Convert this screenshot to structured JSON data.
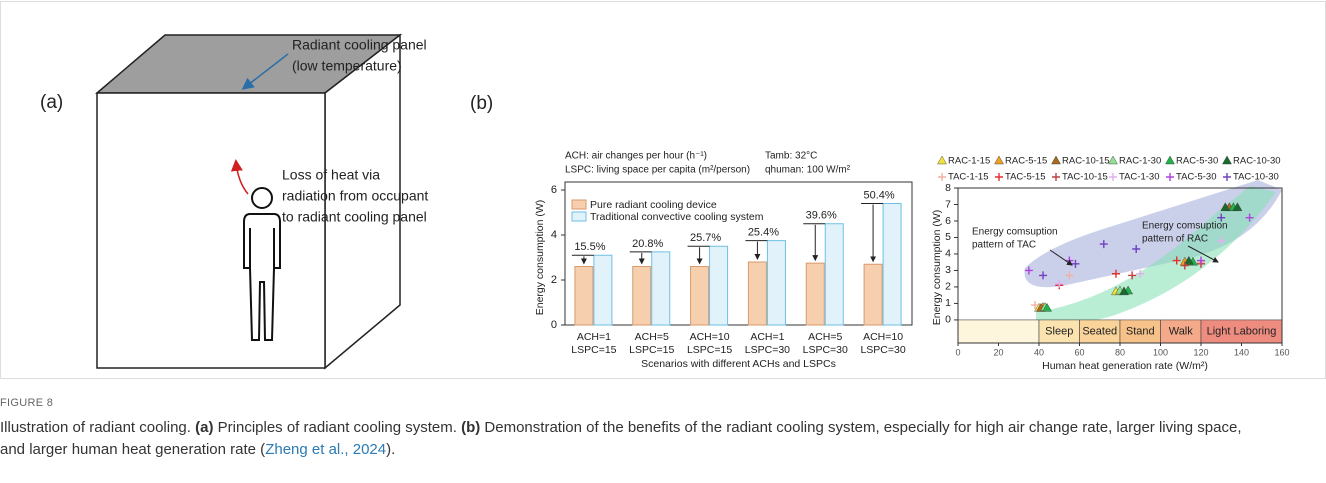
{
  "panel_a": {
    "label": "(a)",
    "panel_note": [
      "Radiant cooling panel",
      "(low temperature)"
    ],
    "heat_note": [
      "Loss of heat via",
      "radiation from occupant",
      "to radiant cooling panel"
    ]
  },
  "panel_b": {
    "label": "(b)"
  },
  "figure": {
    "label": "FIGURE 8",
    "caption": {
      "intro": "Illustration of radiant cooling.",
      "a_label": "(a)",
      "a_text": "Principles of radiant cooling system.",
      "b_label": "(b)",
      "b_text": "Demonstration of the benefits of the radiant cooling system, especially for high air change rate, larger living space, and larger human heat generation rate (",
      "citation": "Zheng et al., 2024",
      "end": ")."
    }
  },
  "chart_data": [
    {
      "type": "bar",
      "notes": [
        "ACH: air changes per hour (h⁻¹)",
        "LSPC: living space per capita (m²/person)"
      ],
      "conditions": [
        "Tamb: 32°C",
        "qhuman: 100 W/m²"
      ],
      "categories": [
        [
          "ACH=1",
          "LSPC=15"
        ],
        [
          "ACH=5",
          "LSPC=15"
        ],
        [
          "ACH=10",
          "LSPC=15"
        ],
        [
          "ACH=1",
          "LSPC=30"
        ],
        [
          "ACH=5",
          "LSPC=30"
        ],
        [
          "ACH=10",
          "LSPC=30"
        ]
      ],
      "series": [
        {
          "name": "Pure radiant cooling device",
          "color": "#f6cfae",
          "edge": "#d99a6c",
          "values": [
            2.6,
            2.6,
            2.6,
            2.8,
            2.75,
            2.7
          ]
        },
        {
          "name": "Traditional convective cooling system",
          "color": "#e2f2fb",
          "edge": "#6cc0e6",
          "values": [
            3.1,
            3.25,
            3.5,
            3.75,
            4.5,
            5.4
          ]
        }
      ],
      "difference_labels": [
        "15.5%",
        "20.8%",
        "25.7%",
        "25.4%",
        "39.6%",
        "50.4%"
      ],
      "ylim": [
        0,
        6
      ],
      "yticks": [
        0,
        2,
        4,
        6
      ],
      "y_label": "Energy consumption (W)",
      "x_label": "Scenarios with different ACHs and LSPCs"
    },
    {
      "type": "scatter",
      "xlim": [
        0,
        160
      ],
      "xticks": [
        0,
        20,
        40,
        60,
        80,
        100,
        120,
        140,
        160
      ],
      "ylim": [
        -1.4,
        8
      ],
      "yticks": [
        0,
        1,
        2,
        3,
        4,
        5,
        6,
        7,
        8
      ],
      "y_label": "Energy consumption (W)",
      "x_label": "Human heat generation rate (W/m²)",
      "annotations": [
        [
          "Energy comsuption",
          "pattern of RAC"
        ],
        [
          "Energy comsuption",
          "pattern of TAC"
        ]
      ],
      "bands": [
        {
          "from": 0,
          "to": 40,
          "color": "#fdf5dc"
        },
        {
          "label": "Sleep",
          "from": 40,
          "to": 60,
          "color": "#fbe3b0"
        },
        {
          "label": "Seated",
          "from": 60,
          "to": 80,
          "color": "#f9d39a"
        },
        {
          "label": "Stand",
          "from": 80,
          "to": 100,
          "color": "#f6c28a"
        },
        {
          "label": "Walk",
          "from": 100,
          "to": 120,
          "color": "#f3a98a"
        },
        {
          "label": "Light Laboring",
          "from": 120,
          "to": 160,
          "color": "#ee8c80"
        }
      ],
      "series": [
        {
          "name": "RAC-1-15",
          "marker": "triangle",
          "color": "#f2e23a",
          "x": [
            40,
            78
          ],
          "values": [
            0.7,
            1.7
          ]
        },
        {
          "name": "RAC-5-15",
          "marker": "triangle",
          "color": "#f0a020",
          "x": [
            42,
            112
          ],
          "values": [
            0.75,
            3.5
          ]
        },
        {
          "name": "RAC-10-15",
          "marker": "triangle",
          "color": "#a86a20",
          "x": [
            41,
            134
          ],
          "values": [
            0.7,
            6.8
          ]
        },
        {
          "name": "RAC-1-30",
          "marker": "triangle",
          "color": "#8fe08f",
          "x": [
            43,
            80
          ],
          "values": [
            0.75,
            1.75
          ]
        },
        {
          "name": "RAC-5-30",
          "marker": "triangle",
          "color": "#22b14c",
          "x": [
            44,
            84,
            116,
            136
          ],
          "values": [
            0.7,
            1.75,
            3.5,
            6.8
          ]
        },
        {
          "name": "RAC-10-30",
          "marker": "triangle",
          "color": "#1a6a30",
          "x": [
            82,
            114,
            132,
            138
          ],
          "values": [
            1.7,
            3.55,
            6.8,
            6.8
          ]
        },
        {
          "name": "TAC-1-15",
          "marker": "plus",
          "color": "#f0b0a0",
          "x": [
            38,
            55,
            120
          ],
          "values": [
            0.9,
            2.7,
            3.5
          ]
        },
        {
          "name": "TAC-5-15",
          "marker": "plus",
          "color": "#e03030",
          "x": [
            50,
            78,
            108
          ],
          "values": [
            2.1,
            2.8,
            3.6
          ]
        },
        {
          "name": "TAC-10-15",
          "marker": "plus",
          "color": "#c04040",
          "x": [
            86,
            112,
            120
          ],
          "values": [
            2.7,
            3.3,
            3.4
          ]
        },
        {
          "name": "TAC-1-30",
          "marker": "plus",
          "color": "#e0b0f0",
          "x": [
            50,
            90,
            130
          ],
          "values": [
            2.2,
            2.8,
            4.8
          ]
        },
        {
          "name": "TAC-5-30",
          "marker": "plus",
          "color": "#b040e0",
          "x": [
            35,
            55,
            120,
            144
          ],
          "values": [
            3.0,
            3.6,
            3.6,
            6.2
          ]
        },
        {
          "name": "TAC-10-30",
          "marker": "plus",
          "color": "#7040c0",
          "x": [
            42,
            58,
            72,
            88,
            130
          ],
          "values": [
            2.7,
            3.4,
            4.6,
            4.3,
            6.2
          ]
        }
      ]
    }
  ]
}
